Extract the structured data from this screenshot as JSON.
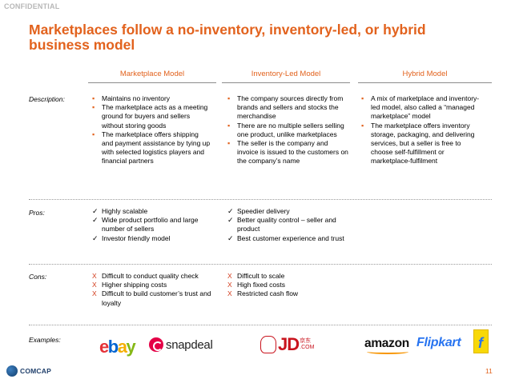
{
  "confidential": "CONFIDENTIAL",
  "title": "Marketplaces follow a no-inventory, inventory-led, or hybrid business model",
  "columns": [
    "Marketplace Model",
    "Inventory-Led Model",
    "Hybrid Model"
  ],
  "row_labels": {
    "description": "Description:",
    "pros": "Pros:",
    "cons": "Cons:",
    "examples": "Examples:"
  },
  "description": {
    "marketplace": [
      "Maintains no inventory",
      "The marketplace acts as a meeting ground for buyers and sellers without storing goods",
      "The marketplace offers shipping and payment assistance by tying up with selected logistics players and financial partners"
    ],
    "inventory": [
      "The company sources directly from brands and sellers and stocks the merchandise",
      "There are no multiple sellers selling one product, unlike marketplaces",
      "The seller is the company and invoice is issued to the customers on the company’s name"
    ],
    "hybrid": [
      "A mix of marketplace and inventory-led model, also called a “managed marketplace” model",
      "The marketplace offers inventory storage, packaging, and delivering services, but a seller is free to choose self-fulfillment or marketplace-fulfilment"
    ]
  },
  "pros": {
    "marketplace": [
      "Highly scalable",
      "Wide product portfolio and large number of sellers",
      "Investor friendly model"
    ],
    "inventory": [
      "Speedier delivery",
      "Better quality control – seller and product",
      "Best customer experience and trust"
    ]
  },
  "cons": {
    "marketplace": [
      "Difficult to conduct quality check",
      "Higher shipping costs",
      "Difficult to build customer’s trust and loyalty"
    ],
    "inventory": [
      "Difficult to scale",
      "High fixed costs",
      "Restricted cash flow"
    ]
  },
  "examples": {
    "ebay": {
      "e": "e",
      "b": "b",
      "a": "a",
      "y": "y"
    },
    "snapdeal": "snapdeal",
    "jd": "JD",
    "jd_cn": [
      "京东",
      ".COM"
    ],
    "amazon": "amazon",
    "flipkart": "Flipkart"
  },
  "footer": {
    "logo": "COMCAP",
    "page_number": "11"
  },
  "colors": {
    "accent": "#e2621d",
    "cross": "#d23a1a",
    "confidential": "#b7b7b7"
  }
}
